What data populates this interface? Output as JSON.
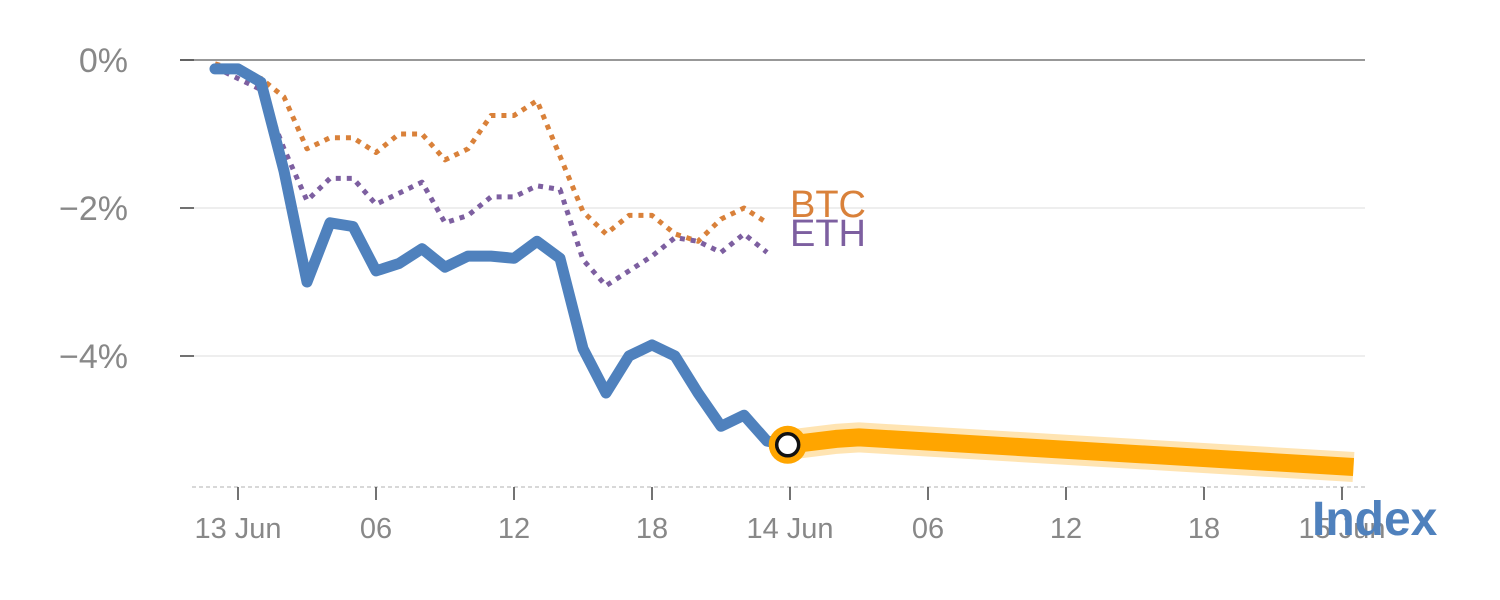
{
  "chart_data": {
    "type": "line",
    "ylim": [
      -5.8,
      0
    ],
    "y_ticks": [
      {
        "value": 0,
        "label": "0%"
      },
      {
        "value": -2,
        "label": "−2%"
      },
      {
        "value": -4,
        "label": "−4%"
      }
    ],
    "x_range_hours": [
      -2,
      50
    ],
    "x_ticks": [
      {
        "hour": 0,
        "label": "13 Jun"
      },
      {
        "hour": 6,
        "label": "06"
      },
      {
        "hour": 12,
        "label": "12"
      },
      {
        "hour": 18,
        "label": "18"
      },
      {
        "hour": 24,
        "label": "14 Jun"
      },
      {
        "hour": 30,
        "label": "06"
      },
      {
        "hour": 36,
        "label": "12"
      },
      {
        "hour": 42,
        "label": "18"
      },
      {
        "hour": 48,
        "label": "15 Jun"
      }
    ],
    "grid": true,
    "series": [
      {
        "name": "BTC",
        "label": "BTC",
        "color": "#d9813a",
        "style": "dotted",
        "x": [
          -1,
          0,
          1,
          2,
          3,
          4,
          5,
          6,
          7,
          8,
          9,
          10,
          11,
          12,
          13,
          14,
          15,
          16,
          17,
          18,
          19,
          20,
          21,
          22,
          23
        ],
        "values": [
          -0.05,
          -0.15,
          -0.25,
          -0.5,
          -1.2,
          -1.05,
          -1.05,
          -1.25,
          -1.0,
          -1.0,
          -1.35,
          -1.2,
          -0.75,
          -0.75,
          -0.55,
          -1.3,
          -2.05,
          -2.35,
          -2.1,
          -2.1,
          -2.35,
          -2.45,
          -2.15,
          -2.0,
          -2.2
        ]
      },
      {
        "name": "ETH",
        "label": "ETH",
        "color": "#7d5fa0",
        "style": "dotted",
        "x": [
          -1,
          0,
          1,
          2,
          3,
          4,
          5,
          6,
          7,
          8,
          9,
          10,
          11,
          12,
          13,
          14,
          15,
          16,
          17,
          18,
          19,
          20,
          21,
          22,
          23
        ],
        "values": [
          -0.1,
          -0.25,
          -0.4,
          -1.2,
          -1.9,
          -1.6,
          -1.6,
          -1.95,
          -1.8,
          -1.65,
          -2.2,
          -2.1,
          -1.85,
          -1.85,
          -1.7,
          -1.75,
          -2.7,
          -3.05,
          -2.85,
          -2.65,
          -2.4,
          -2.45,
          -2.6,
          -2.35,
          -2.6
        ]
      },
      {
        "name": "Index",
        "label": "Index",
        "color": "#4f81bd",
        "style": "solid",
        "x": [
          -1,
          0,
          1,
          2,
          3,
          4,
          5,
          6,
          7,
          8,
          9,
          10,
          11,
          12,
          13,
          14,
          15,
          16,
          17,
          18,
          19,
          20,
          21,
          22,
          23,
          23.9
        ],
        "values": [
          -0.12,
          -0.12,
          -0.3,
          -1.5,
          -3.0,
          -2.2,
          -2.25,
          -2.85,
          -2.75,
          -2.55,
          -2.8,
          -2.65,
          -2.65,
          -2.68,
          -2.45,
          -2.68,
          -3.9,
          -4.5,
          -4.0,
          -3.85,
          -4.0,
          -4.5,
          -4.95,
          -4.8,
          -5.15,
          -5.2
        ]
      }
    ],
    "forecast": {
      "color": "#ffa500",
      "x": [
        23.9,
        26,
        27,
        48.5
      ],
      "values": [
        -5.2,
        -5.12,
        -5.1,
        -5.5
      ]
    },
    "current_point": {
      "x": 23.9,
      "value": -5.2
    }
  }
}
